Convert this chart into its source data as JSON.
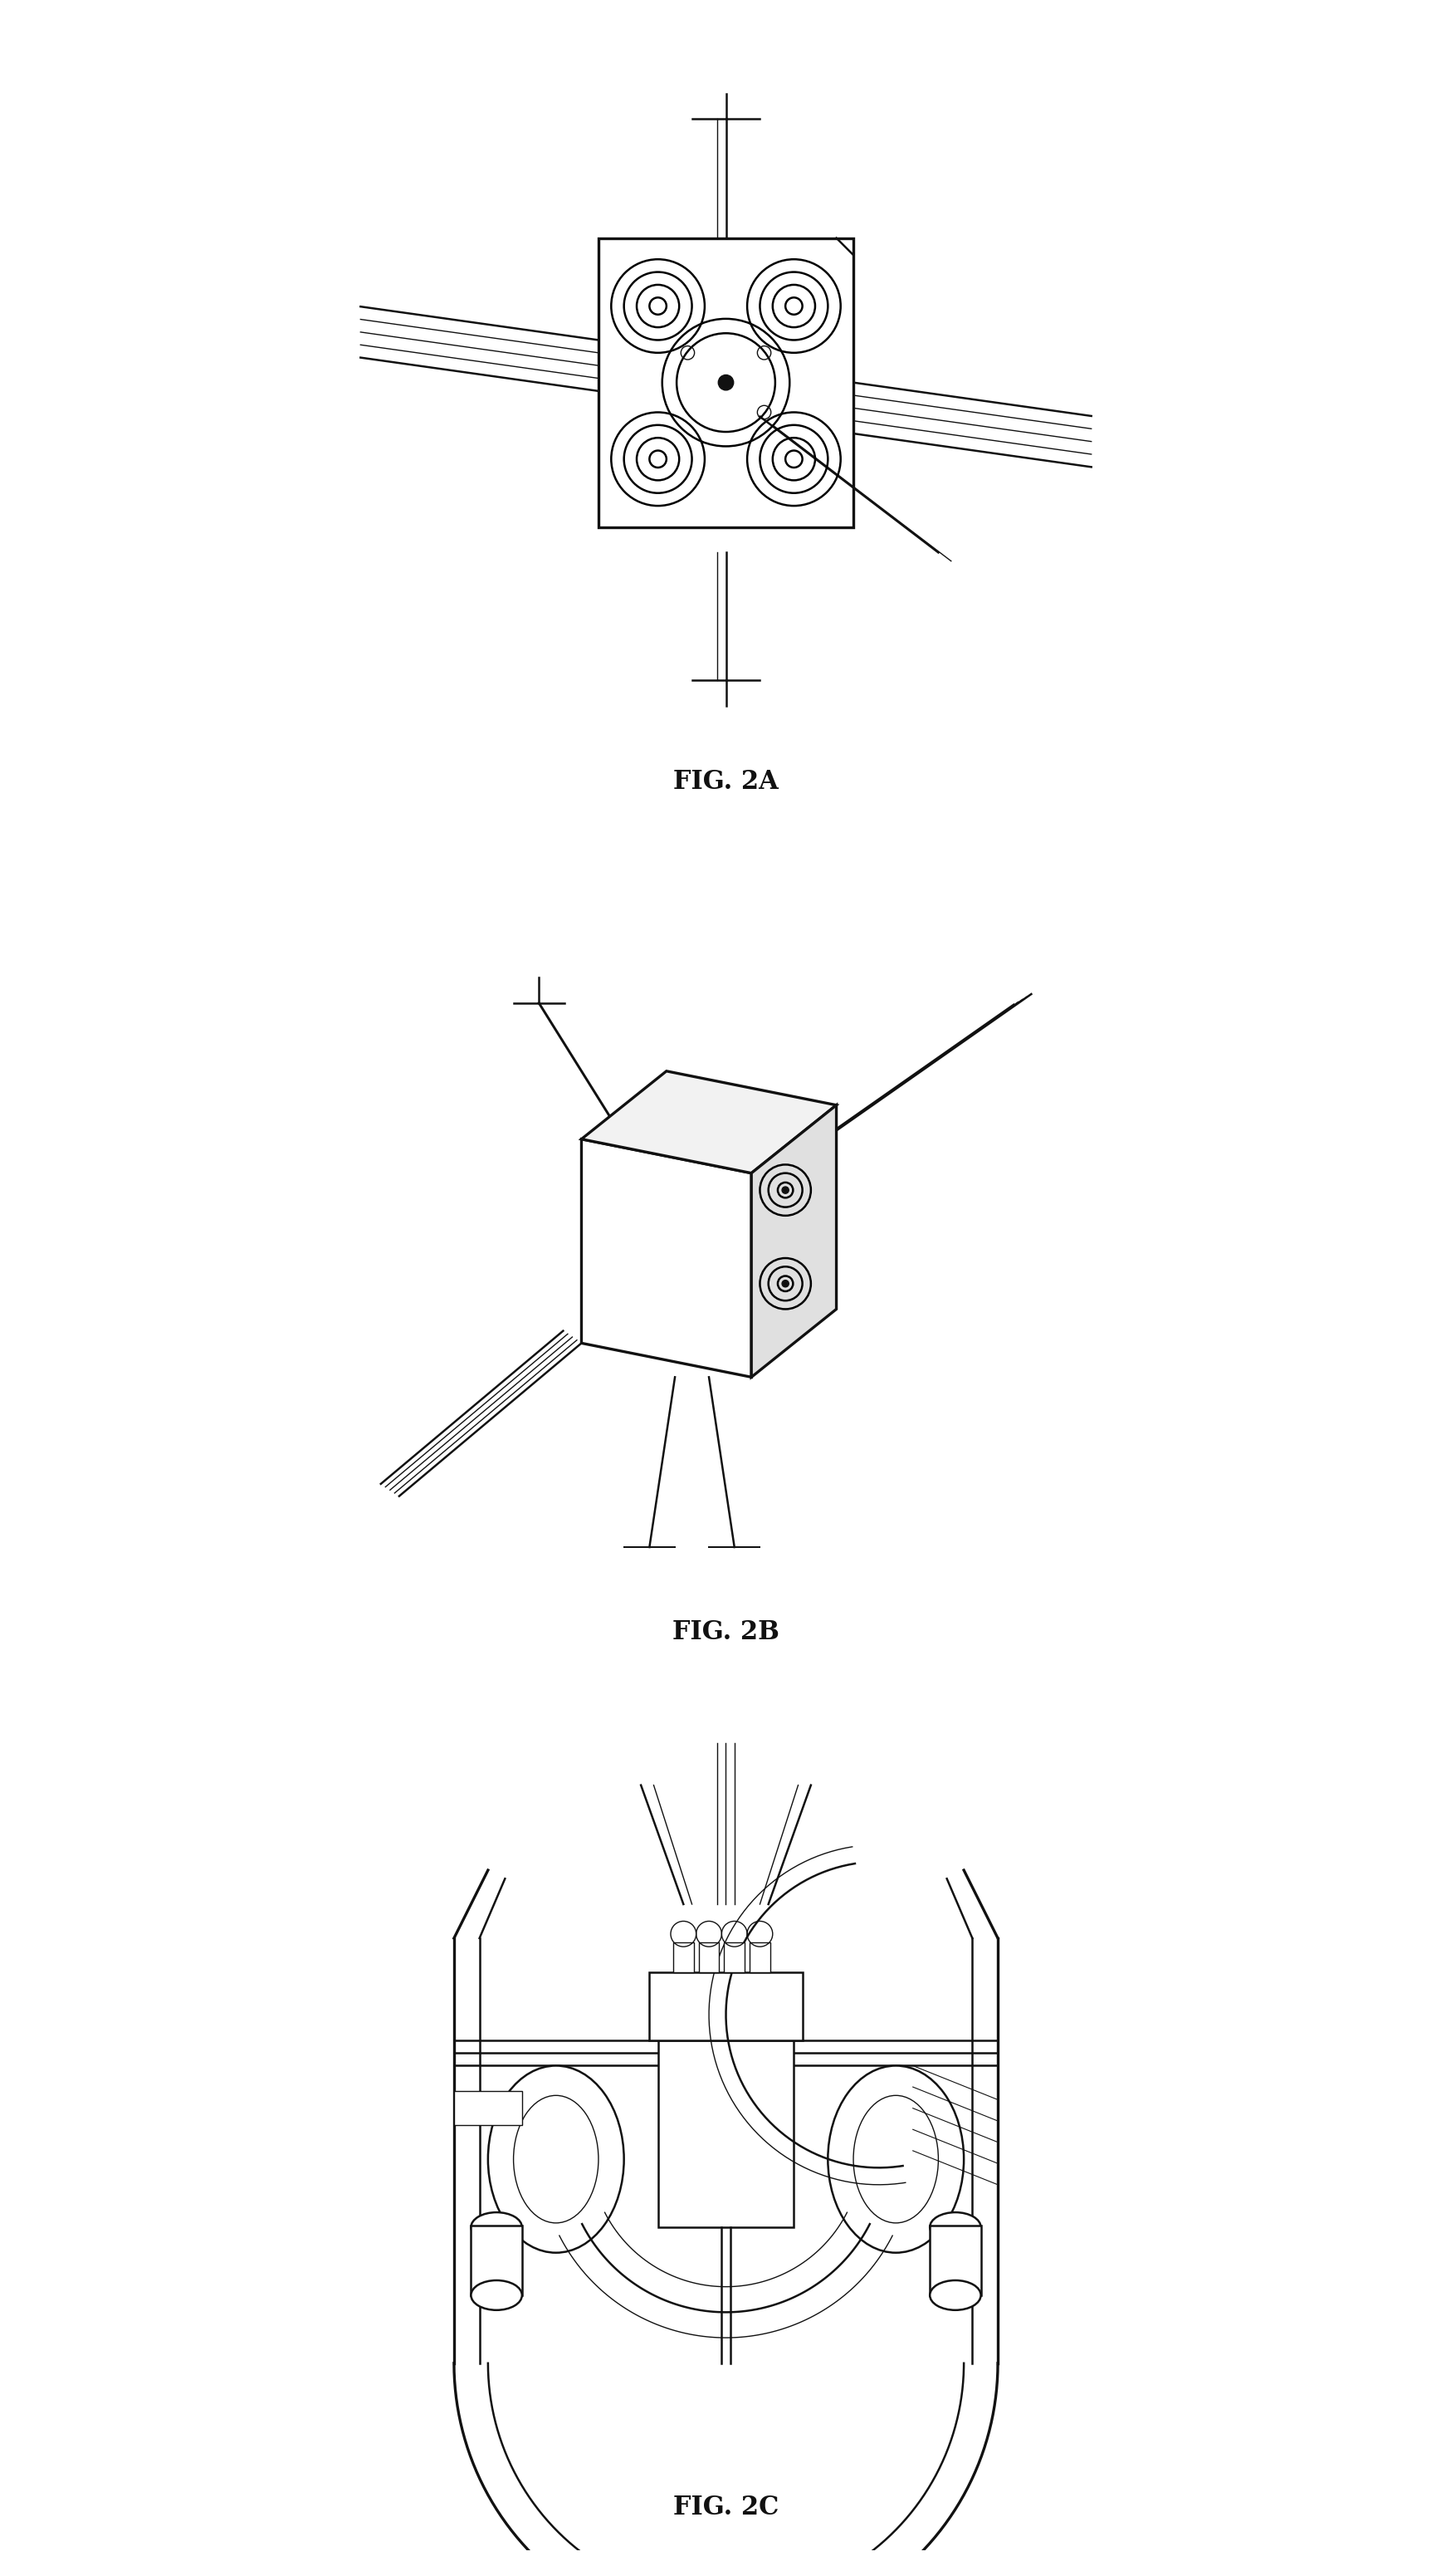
{
  "fig_labels": [
    "FIG. 2A",
    "FIG. 2B",
    "FIG. 2C"
  ],
  "label_fontsize": 22,
  "background_color": "#ffffff",
  "line_color": "#111111",
  "lw_main": 1.8,
  "lw_thin": 1.0,
  "lw_thick": 2.4
}
